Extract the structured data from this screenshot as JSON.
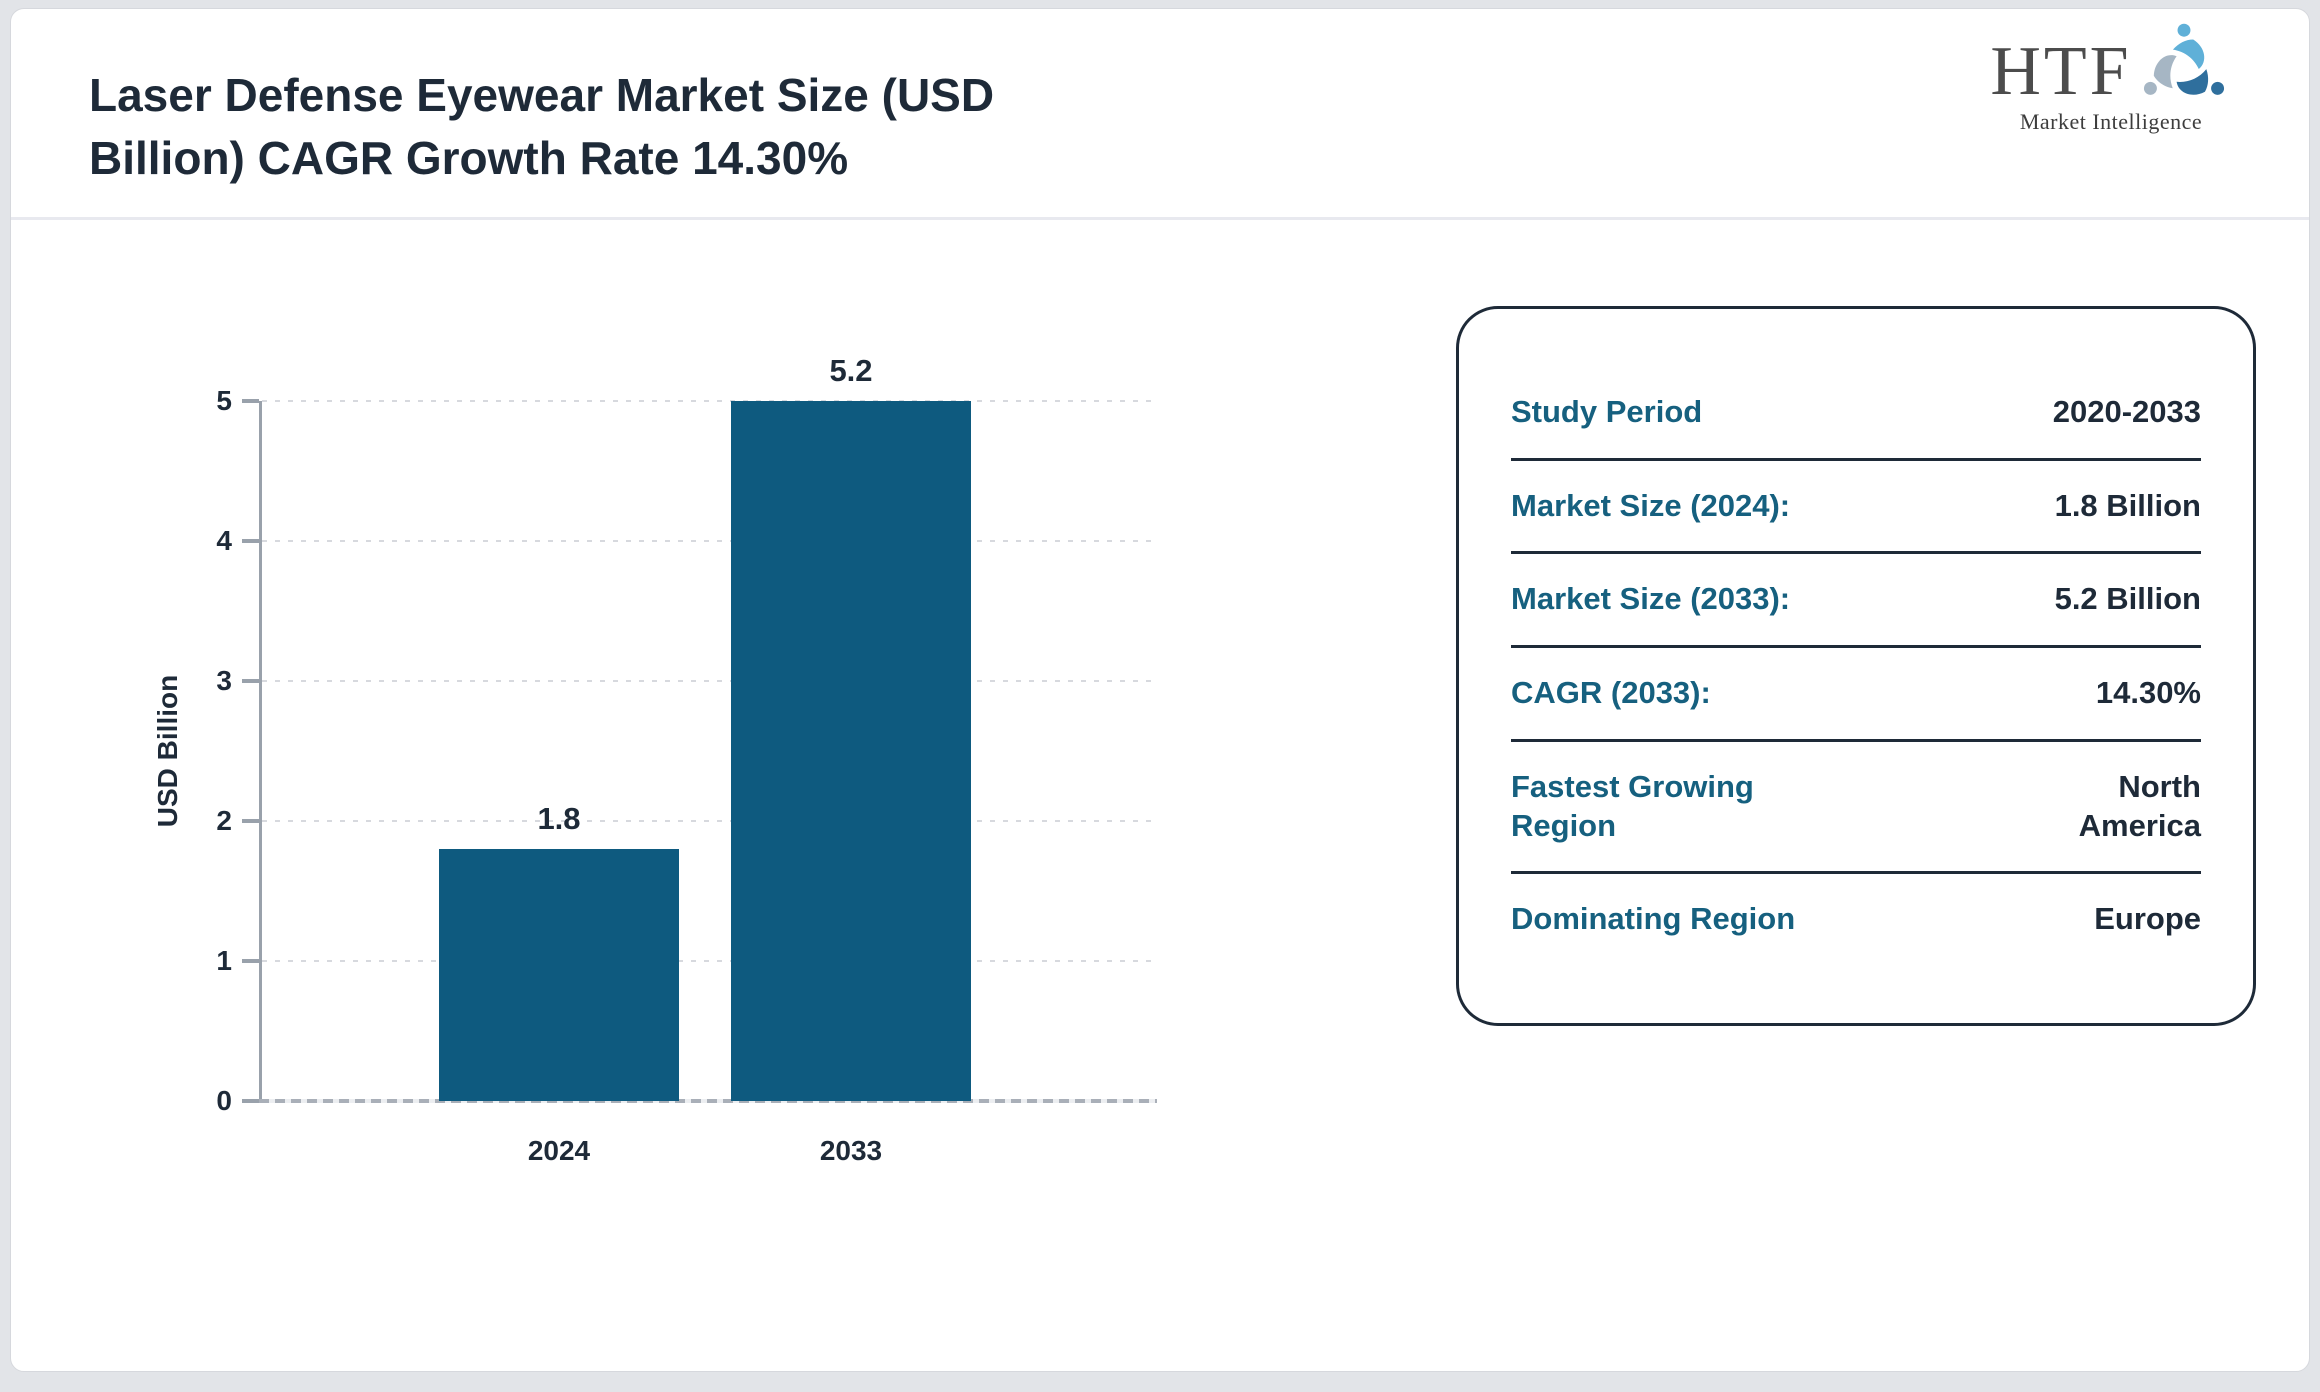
{
  "header": {
    "title_lines": [
      "Laser Defense Eyewear Market Size (USD",
      "Billion) CAGR Growth Rate 14.30%"
    ]
  },
  "logo": {
    "brand": "HTF",
    "tagline": "Market Intelligence",
    "swirl_colors": [
      "#5fb0d8",
      "#2f6f9d",
      "#a6b6c4"
    ]
  },
  "chart_data": {
    "type": "bar",
    "title": "",
    "categories": [
      "2024",
      "2033"
    ],
    "values": [
      1.8,
      5.2
    ],
    "data_labels": [
      "1.8",
      "5.2"
    ],
    "xlabel": "",
    "ylabel": "USD Billion",
    "ylim": [
      0,
      5
    ],
    "yticks": [
      0,
      1,
      2,
      3,
      4,
      5
    ],
    "bars_clipped_at_ymax": true,
    "grid": "horizontal-dotted",
    "legend": "none",
    "bar_color": "#0e5a7f"
  },
  "panel": {
    "rows": [
      {
        "label": "Study Period",
        "value": "2020-2033"
      },
      {
        "label": "Market Size (2024):",
        "value": "1.8 Billion"
      },
      {
        "label": "Market Size (2033):",
        "value": "5.2 Billion"
      },
      {
        "label": "CAGR (2033):",
        "value": "14.30%"
      },
      {
        "label": "Fastest Growing Region",
        "value": "North America"
      },
      {
        "label": "Dominating Region",
        "value": "Europe"
      }
    ]
  },
  "colors": {
    "bar": "#0e5a7f",
    "label_teal": "#16607f",
    "text_dark": "#1e2a38",
    "page_frame": "#e2e4e8"
  }
}
